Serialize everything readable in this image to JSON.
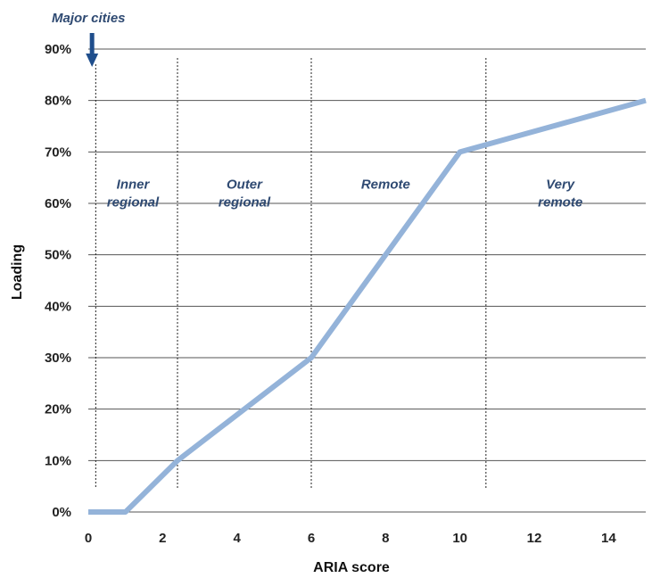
{
  "chart_data": {
    "type": "line",
    "title": "",
    "xlabel": "ARIA score",
    "ylabel": "Loading",
    "xlim": [
      0,
      15
    ],
    "ylim": [
      0,
      90
    ],
    "x_ticks": [
      "0",
      "2",
      "4",
      "6",
      "8",
      "10",
      "12",
      "14"
    ],
    "y_ticks": [
      "0%",
      "10%",
      "20%",
      "30%",
      "40%",
      "50%",
      "60%",
      "70%",
      "80%",
      "90%"
    ],
    "grid": "horizontal",
    "series": [
      {
        "x": [
          0,
          1.0,
          2.4,
          6.0,
          10.0,
          15.0
        ],
        "y": [
          0,
          0,
          10,
          30,
          70,
          80
        ],
        "color": "#94b3d9"
      }
    ],
    "region_dividers_x": [
      0.2,
      2.4,
      6.0,
      10.7
    ],
    "annotation": {
      "text": "Major cities",
      "arrow_target_x": 0.1,
      "arrow_color": "#1f4e8c"
    },
    "region_labels": [
      {
        "lines": [
          "Inner",
          "regional"
        ],
        "x": 1.2,
        "y": 67
      },
      {
        "lines": [
          "Outer",
          "regional"
        ],
        "x": 4.2,
        "y": 67
      },
      {
        "lines": [
          "Remote"
        ],
        "x": 8.0,
        "y": 67
      },
      {
        "lines": [
          "Very",
          "remote"
        ],
        "x": 12.7,
        "y": 67
      }
    ],
    "label_color": "#2f4a72"
  }
}
